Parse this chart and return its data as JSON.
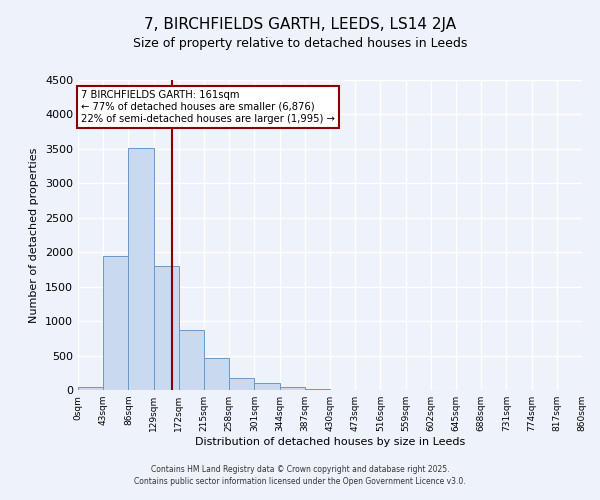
{
  "title": "7, BIRCHFIELDS GARTH, LEEDS, LS14 2JA",
  "subtitle": "Size of property relative to detached houses in Leeds",
  "xlabel": "Distribution of detached houses by size in Leeds",
  "ylabel": "Number of detached properties",
  "bin_edges": [
    0,
    43,
    86,
    129,
    172,
    215,
    258,
    301,
    344,
    387,
    430,
    473,
    516,
    559,
    602,
    645,
    688,
    731,
    774,
    817,
    860
  ],
  "bin_labels": [
    "0sqm",
    "43sqm",
    "86sqm",
    "129sqm",
    "172sqm",
    "215sqm",
    "258sqm",
    "301sqm",
    "344sqm",
    "387sqm",
    "430sqm",
    "473sqm",
    "516sqm",
    "559sqm",
    "602sqm",
    "645sqm",
    "688sqm",
    "731sqm",
    "774sqm",
    "817sqm",
    "860sqm"
  ],
  "counts": [
    50,
    1950,
    3520,
    1800,
    870,
    460,
    175,
    95,
    40,
    20,
    5,
    0,
    0,
    0,
    0,
    0,
    0,
    0,
    0,
    0
  ],
  "bar_color": "#c9d9f0",
  "bar_edge_color": "#6699cc",
  "vline_x": 161,
  "vline_color": "#8b0000",
  "annotation_title": "7 BIRCHFIELDS GARTH: 161sqm",
  "annotation_line1": "← 77% of detached houses are smaller (6,876)",
  "annotation_line2": "22% of semi-detached houses are larger (1,995) →",
  "annotation_box_color": "#ffffff",
  "annotation_box_edge": "#8b0000",
  "ylim": [
    0,
    4500
  ],
  "xlim": [
    0,
    860
  ],
  "background_color": "#eef2fb",
  "grid_color": "#ffffff",
  "footer1": "Contains HM Land Registry data © Crown copyright and database right 2025.",
  "footer2": "Contains public sector information licensed under the Open Government Licence v3.0."
}
